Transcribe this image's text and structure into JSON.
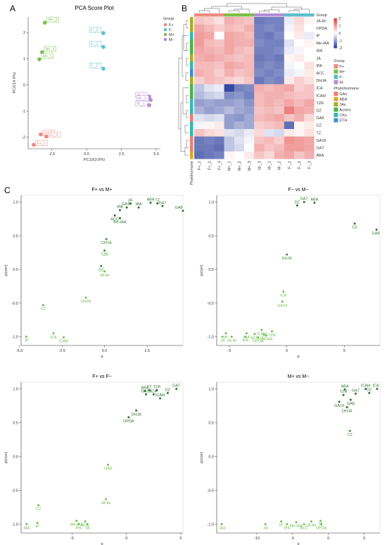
{
  "panel_letters": {
    "a": "A",
    "b": "B",
    "c": "C"
  },
  "chart_data": [
    {
      "id": "pca",
      "type": "scatter",
      "title": "PCA Score Plot",
      "xlabel": "PC1(63.6%)",
      "ylabel": "PC2(14.4%)",
      "xlim": [
        -4.2,
        5.3
      ],
      "ylim": [
        -2.45,
        2.6
      ],
      "xticks": [
        -2.5,
        0.0,
        2.5,
        5.0
      ],
      "yticks": [
        -2,
        -1,
        0,
        1,
        2
      ],
      "legend": {
        "title": "Group",
        "position": "right",
        "entries": [
          {
            "name": "F+",
            "color": "#EE8A82"
          },
          {
            "name": "F-",
            "color": "#5CBFCB"
          },
          {
            "name": "M+",
            "color": "#7DBF48"
          },
          {
            "name": "M-",
            "color": "#B48ED6"
          }
        ]
      },
      "points": [
        {
          "label": "M+_3",
          "group": "M+",
          "x": -3.0,
          "y": 2.38
        },
        {
          "label": "M+_2",
          "group": "M+",
          "x": -3.2,
          "y": 1.25
        },
        {
          "label": "M+_1",
          "group": "M+",
          "x": -3.4,
          "y": 0.98
        },
        {
          "label": "F-_3",
          "group": "F-",
          "x": 1.2,
          "y": 1.98
        },
        {
          "label": "F-_1",
          "group": "F-",
          "x": 1.2,
          "y": 1.45
        },
        {
          "label": "F-_2",
          "group": "F-",
          "x": 1.2,
          "y": 0.62
        },
        {
          "label": "M-_2",
          "group": "M-",
          "x": 4.5,
          "y": -0.45
        },
        {
          "label": "M-_3",
          "group": "M-",
          "x": 4.6,
          "y": -0.58
        },
        {
          "label": "M-_1",
          "group": "M-",
          "x": 4.5,
          "y": -0.78
        },
        {
          "label": "F+_2",
          "group": "F+",
          "x": -3.3,
          "y": -1.9
        },
        {
          "label": "F+_3",
          "group": "F+",
          "x": -2.9,
          "y": -1.98
        },
        {
          "label": "F+_1",
          "group": "F+",
          "x": -3.8,
          "y": -2.3
        }
      ]
    },
    {
      "id": "heatmap",
      "type": "heatmap",
      "columns": [
        "F+_1",
        "F+_2",
        "F+_3",
        "M+_1",
        "M+_2",
        "M+_3",
        "M-_3",
        "M-_1",
        "M-_2",
        "F-_1",
        "F-_2",
        "F-_3"
      ],
      "column_groups": [
        "F+",
        "F+",
        "F+",
        "M+",
        "M+",
        "M+",
        "M-",
        "M-",
        "M-",
        "F-",
        "F-",
        "F-"
      ],
      "row_annotation_label": "Phytohormone",
      "column_annotation_label": "Group",
      "rows": [
        {
          "name": "JA-Ile",
          "class": "JAs",
          "values": [
            0.6,
            0.5,
            0.3,
            0.8,
            0.7,
            0.6,
            -1.4,
            -1.3,
            -1.3,
            -0.2,
            0.4,
            0.1
          ]
        },
        {
          "name": "OPDA",
          "class": "JAs",
          "values": [
            0.9,
            0.7,
            0.5,
            0.7,
            0.6,
            0.8,
            -1.3,
            -1.2,
            -1.3,
            -0.1,
            0.3,
            0.0
          ]
        },
        {
          "name": "IP",
          "class": "CKs",
          "values": [
            1.0,
            0.9,
            0.0,
            0.9,
            0.8,
            0.7,
            -1.3,
            -1.4,
            -1.2,
            0.0,
            0.2,
            -0.2
          ]
        },
        {
          "name": "Me-IAA",
          "class": "Auxins",
          "values": [
            1.0,
            0.7,
            0.6,
            0.9,
            0.8,
            0.8,
            -1.2,
            -1.3,
            -1.3,
            -0.3,
            0.0,
            0.1
          ]
        },
        {
          "name": "IAA",
          "class": "Auxins",
          "values": [
            0.9,
            0.8,
            0.7,
            0.9,
            0.7,
            0.6,
            -1.3,
            -1.3,
            -1.2,
            -0.2,
            -0.1,
            0.0
          ]
        },
        {
          "name": "JA",
          "class": "JAs",
          "values": [
            0.8,
            0.9,
            0.8,
            0.7,
            0.6,
            0.7,
            -1.4,
            -1.3,
            -1.4,
            0.1,
            0.2,
            0.0
          ]
        },
        {
          "name": "IPA",
          "class": "CKs",
          "values": [
            0.7,
            0.7,
            0.6,
            0.9,
            0.8,
            0.7,
            -1.3,
            -1.2,
            -1.3,
            -0.1,
            0.0,
            0.3
          ]
        },
        {
          "name": "ACC",
          "class": "ETH",
          "values": [
            0.8,
            0.7,
            0.5,
            0.8,
            0.6,
            0.7,
            -1.2,
            -1.3,
            -1.2,
            -0.2,
            -0.1,
            0.2
          ]
        },
        {
          "name": "DHJA",
          "class": "JAs",
          "values": [
            0.5,
            0.7,
            0.6,
            0.5,
            0.4,
            0.6,
            -1.4,
            -1.2,
            -1.3,
            0.2,
            0.5,
            0.3
          ]
        },
        {
          "name": "ICA",
          "class": "Auxins",
          "values": [
            -0.6,
            -0.3,
            -0.2,
            -1.9,
            -1.3,
            -1.2,
            0.8,
            0.7,
            0.8,
            0.9,
            0.5,
            0.6
          ]
        },
        {
          "name": "ICAld",
          "class": "Auxins",
          "values": [
            -0.7,
            -0.5,
            -0.4,
            -1.2,
            -1.1,
            -1.3,
            0.7,
            0.8,
            0.8,
            0.7,
            0.6,
            0.6
          ]
        },
        {
          "name": "TZR",
          "class": "CKs",
          "values": [
            -1.0,
            -0.9,
            -1.0,
            -1.0,
            -0.9,
            -1.1,
            0.7,
            0.8,
            0.7,
            0.9,
            0.7,
            0.9
          ]
        },
        {
          "name": "DZ",
          "class": "CKs",
          "values": [
            -0.8,
            -1.0,
            -0.9,
            -0.7,
            -0.9,
            -1.0,
            0.6,
            0.7,
            0.6,
            1.3,
            0.9,
            0.8
          ]
        },
        {
          "name": "GA8",
          "class": "GAs",
          "values": [
            -0.3,
            -0.4,
            -0.3,
            -1.0,
            -1.1,
            -0.9,
            0.7,
            0.8,
            0.9,
            0.6,
            0.8,
            0.4
          ]
        },
        {
          "name": "CZ",
          "class": "CKs",
          "values": [
            -0.1,
            0.1,
            0.2,
            -1.0,
            -0.8,
            -0.9,
            0.5,
            0.6,
            0.7,
            -1.5,
            0.1,
            0.2
          ]
        },
        {
          "name": "TZ",
          "class": "CKs",
          "values": [
            0.6,
            0.4,
            0.3,
            -0.3,
            -0.4,
            -0.2,
            0.4,
            -0.3,
            -0.4,
            0.2,
            0.1,
            0.3
          ]
        },
        {
          "name": "GA19",
          "class": "GAs",
          "values": [
            -1.4,
            -1.3,
            -1.4,
            -0.6,
            -0.3,
            -0.1,
            0.6,
            0.7,
            0.5,
            1.1,
            1.0,
            0.9
          ]
        },
        {
          "name": "GA7",
          "class": "GAs",
          "values": [
            -1.4,
            -1.4,
            -1.5,
            -0.6,
            -0.4,
            0.0,
            0.8,
            0.6,
            0.7,
            1.0,
            1.0,
            0.9
          ]
        },
        {
          "name": "ABA",
          "class": "ABA",
          "values": [
            -1.5,
            -1.4,
            -1.3,
            0.1,
            0.0,
            0.2,
            0.6,
            0.4,
            0.8,
            0.9,
            0.6,
            0.8
          ]
        }
      ],
      "color_scale": {
        "min": -2,
        "max": 2,
        "ticks": [
          2,
          1,
          0,
          -1,
          -2
        ],
        "low": "#2B3F9E",
        "mid": "#FFFFFF",
        "high": "#E23A3A"
      },
      "legend_group": {
        "title": "Group",
        "entries": [
          {
            "name": "F+",
            "color": "#EE8A82"
          },
          {
            "name": "M+",
            "color": "#7DBF48"
          },
          {
            "name": "F-",
            "color": "#5CBFCB"
          },
          {
            "name": "M-",
            "color": "#B48ED6"
          }
        ]
      },
      "legend_class": {
        "title": "Phytohormone",
        "entries": [
          {
            "name": "GAs",
            "color": "#F07D6E"
          },
          {
            "name": "ABA",
            "color": "#E5A322"
          },
          {
            "name": "JAs",
            "color": "#A4B024"
          },
          {
            "name": "Auxins",
            "color": "#49B449"
          },
          {
            "name": "CKs",
            "color": "#35B8B0"
          },
          {
            "name": "ETH",
            "color": "#3C8FD8"
          }
        ]
      }
    },
    {
      "id": "splot1",
      "type": "scatter",
      "title": "F+ vs M+",
      "xlabel": "p",
      "ylabel": "p(corr)",
      "xlim": [
        -4.9,
        4.6
      ],
      "ylim": [
        -1.13,
        1.1
      ],
      "xticks": [
        -5.0,
        -2.5,
        0.0,
        2.5
      ],
      "yticks": [
        -1.0,
        -0.5,
        0.0,
        0.5,
        1.0
      ],
      "points": [
        {
          "label": "JA",
          "x": 1.5,
          "y": 0.98
        },
        {
          "label": "ABA",
          "x": 2.7,
          "y": 0.99
        },
        {
          "label": "TZ",
          "x": 3.1,
          "y": 0.98
        },
        {
          "label": "IPA",
          "x": 0.9,
          "y": 0.88
        },
        {
          "label": "GA19",
          "x": 1.3,
          "y": 0.92
        },
        {
          "label": "IAA",
          "x": 2.0,
          "y": 0.92
        },
        {
          "label": "GA7",
          "x": 3.4,
          "y": 0.94
        },
        {
          "label": "GA8",
          "x": 4.6,
          "y": 0.87
        },
        {
          "label": "ACC",
          "x": 0.6,
          "y": 0.8
        },
        {
          "label": "Me-IAA",
          "x": 0.9,
          "y": 0.76
        },
        {
          "label": "OPDA",
          "x": 0.1,
          "y": 0.45
        },
        {
          "label": "TZR",
          "x": 0.0,
          "y": 0.28
        },
        {
          "label": "DZ",
          "x": -0.2,
          "y": 0.05
        },
        {
          "label": "JA-Ile",
          "x": 0.0,
          "y": -0.03
        },
        {
          "label": "DHJA",
          "x": -1.1,
          "y": -0.42
        },
        {
          "label": "CZ",
          "x": -3.6,
          "y": -0.53
        },
        {
          "label": "ICA",
          "x": -3.0,
          "y": -0.95
        },
        {
          "label": "IP",
          "x": -4.6,
          "y": -1.0
        },
        {
          "label": "ICAld",
          "x": -2.4,
          "y": -1.01
        }
      ]
    },
    {
      "id": "splot2",
      "type": "scatter",
      "title": "F− vs M−",
      "xlabel": "p",
      "ylabel": "p(corr)",
      "xlim": [
        -6.1,
        8.1
      ],
      "ylim": [
        -1.13,
        1.1
      ],
      "xticks": [
        -5,
        0,
        5
      ],
      "yticks": [
        -1.0,
        -0.5,
        0.0,
        0.5,
        1.0
      ],
      "points": [
        {
          "label": "GA7",
          "x": 1.5,
          "y": 1.0
        },
        {
          "label": "ABA",
          "x": 2.4,
          "y": 0.99
        },
        {
          "label": "DZ",
          "x": 0.9,
          "y": 0.95
        },
        {
          "label": "CZ",
          "x": 5.9,
          "y": 0.68
        },
        {
          "label": "GA8",
          "x": 7.8,
          "y": 0.59
        },
        {
          "label": "DHJA",
          "x": 0.0,
          "y": 0.22
        },
        {
          "label": "ICA",
          "x": -0.3,
          "y": -0.33
        },
        {
          "label": "GA19",
          "x": -0.4,
          "y": -0.48
        },
        {
          "label": "ICAld",
          "x": -2.2,
          "y": -0.9
        },
        {
          "label": "TZR",
          "x": -1.3,
          "y": -0.92
        },
        {
          "label": "IP",
          "x": -5.3,
          "y": -0.95
        },
        {
          "label": "IAA",
          "x": -3.5,
          "y": -0.95
        },
        {
          "label": "ACC",
          "x": -2.8,
          "y": -0.96
        },
        {
          "label": "TZ",
          "x": -2.0,
          "y": -0.97
        },
        {
          "label": "Me-IAA",
          "x": -1.8,
          "y": -0.98
        },
        {
          "label": "JA",
          "x": -5.6,
          "y": -1.0
        },
        {
          "label": "JA-Ile",
          "x": -4.8,
          "y": -1.0
        },
        {
          "label": "IPA",
          "x": -3.6,
          "y": -1.0
        },
        {
          "label": "OPDA",
          "x": -2.5,
          "y": -1.01
        }
      ]
    },
    {
      "id": "splot3",
      "type": "scatter",
      "title": "F+ vs F−",
      "xlabel": "p",
      "ylabel": "p(corr)",
      "xlim": [
        -9.7,
        5.2
      ],
      "ylim": [
        -1.13,
        1.1
      ],
      "xticks": [
        -5,
        0,
        5
      ],
      "yticks": [
        -1.0,
        -0.5,
        0.0,
        0.5,
        1.0
      ],
      "points": [
        {
          "label": "GA7",
          "x": 4.6,
          "y": 1.0
        },
        {
          "label": "ABA",
          "x": 1.7,
          "y": 0.97
        },
        {
          "label": "TZ",
          "x": 2.1,
          "y": 0.98
        },
        {
          "label": "TZR",
          "x": 2.8,
          "y": 0.98
        },
        {
          "label": "GA19",
          "x": 1.8,
          "y": 0.92
        },
        {
          "label": "ICA",
          "x": 2.5,
          "y": 0.92
        },
        {
          "label": "DZ",
          "x": 3.8,
          "y": 0.94
        },
        {
          "label": "ICAld",
          "x": 3.1,
          "y": 0.86
        },
        {
          "label": "DHJA",
          "x": 0.9,
          "y": 0.68
        },
        {
          "label": "OPDA",
          "x": 0.2,
          "y": 0.58
        },
        {
          "label": "GA8",
          "x": -1.7,
          "y": -0.12
        },
        {
          "label": "JA-Ile",
          "x": -1.9,
          "y": -0.63
        },
        {
          "label": "CZ",
          "x": -8.1,
          "y": -0.72
        },
        {
          "label": "Me-IAA",
          "x": -4.6,
          "y": -0.95
        },
        {
          "label": "ACC",
          "x": -3.8,
          "y": -0.96
        },
        {
          "label": "IP",
          "x": -8.2,
          "y": -0.98
        },
        {
          "label": "IAA",
          "x": -9.2,
          "y": -1.0
        },
        {
          "label": "IPA",
          "x": -4.4,
          "y": -1.0
        },
        {
          "label": "JA",
          "x": -3.6,
          "y": -1.0
        }
      ]
    },
    {
      "id": "splot4",
      "type": "scatter",
      "title": "M+ vs M−",
      "xlabel": "p",
      "ylabel": "p(corr)",
      "xlim": [
        -15.6,
        7.2
      ],
      "ylim": [
        -1.13,
        1.1
      ],
      "xticks": [
        -10,
        -5,
        0,
        5
      ],
      "yticks": [
        -1.0,
        -0.5,
        0.0,
        0.5,
        1.0
      ],
      "points": [
        {
          "label": "ABA",
          "x": 2.3,
          "y": 0.99
        },
        {
          "label": "ICAld",
          "x": 5.2,
          "y": 1.0
        },
        {
          "label": "ICA",
          "x": 6.8,
          "y": 1.0
        },
        {
          "label": "TZR",
          "x": 2.1,
          "y": 0.91
        },
        {
          "label": "GA7",
          "x": 3.8,
          "y": 0.93
        },
        {
          "label": "DZ",
          "x": 5.7,
          "y": 0.94
        },
        {
          "label": "GA8",
          "x": 3.1,
          "y": 0.84
        },
        {
          "label": "GA19",
          "x": 1.5,
          "y": 0.81
        },
        {
          "label": "DHJA",
          "x": 2.6,
          "y": 0.73
        },
        {
          "label": "CZ",
          "x": 3.0,
          "y": 0.38
        },
        {
          "label": "IP",
          "x": -6.6,
          "y": -0.96
        },
        {
          "label": "Me-IAA",
          "x": -4.5,
          "y": -0.97
        },
        {
          "label": "JA-Ile",
          "x": -2.4,
          "y": -0.96
        },
        {
          "label": "TZ",
          "x": -1.1,
          "y": -0.95
        },
        {
          "label": "IAA",
          "x": -14.9,
          "y": -1.0
        },
        {
          "label": "JA",
          "x": -8.8,
          "y": -1.0
        },
        {
          "label": "IPA",
          "x": -5.8,
          "y": -1.0
        },
        {
          "label": "ACC",
          "x": -3.4,
          "y": -1.0
        },
        {
          "label": "OPDA",
          "x": -1.0,
          "y": -1.0
        }
      ]
    }
  ]
}
